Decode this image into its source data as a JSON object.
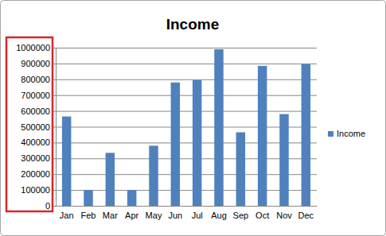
{
  "chart_data": {
    "type": "bar",
    "title": "Income",
    "categories": [
      "Jan",
      "Feb",
      "Mar",
      "Apr",
      "May",
      "Jun",
      "Jul",
      "Aug",
      "Sep",
      "Oct",
      "Nov",
      "Dec"
    ],
    "series": [
      {
        "name": "Income",
        "color": "#4f81bd",
        "values": [
          565000,
          100000,
          335000,
          100000,
          380000,
          780000,
          795000,
          990000,
          465000,
          885000,
          580000,
          895000
        ]
      }
    ],
    "ylim": [
      0,
      1000000
    ],
    "yticks": [
      0,
      100000,
      200000,
      300000,
      400000,
      500000,
      600000,
      700000,
      800000,
      900000,
      1000000
    ],
    "grid": true,
    "legend": "right"
  }
}
